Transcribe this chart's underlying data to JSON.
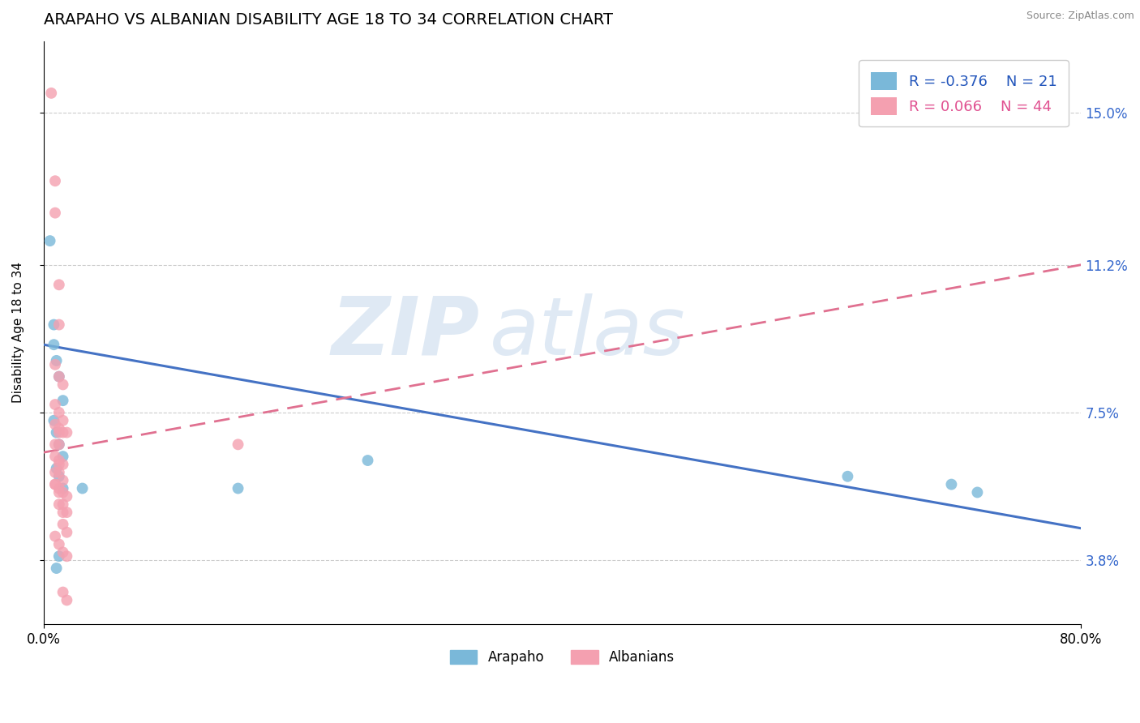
{
  "title": "ARAPAHO VS ALBANIAN DISABILITY AGE 18 TO 34 CORRELATION CHART",
  "source": "Source: ZipAtlas.com",
  "ylabel": "Disability Age 18 to 34",
  "xlim": [
    0.0,
    0.8
  ],
  "ylim": [
    0.022,
    0.168
  ],
  "xtick_values": [
    0.0,
    0.8
  ],
  "xtick_labels": [
    "0.0%",
    "80.0%"
  ],
  "ytick_values": [
    0.038,
    0.075,
    0.112,
    0.15
  ],
  "ytick_labels": [
    "3.8%",
    "7.5%",
    "11.2%",
    "15.0%"
  ],
  "arapaho_color": "#7ab8d9",
  "albanian_color": "#f4a0b0",
  "arapaho_line_color": "#4472C4",
  "albanian_line_color": "#e07090",
  "arapaho_R": -0.376,
  "arapaho_N": 21,
  "albanian_R": 0.066,
  "albanian_N": 44,
  "watermark_zip": "ZIP",
  "watermark_atlas": "atlas",
  "watermark_color": "#c8d8e8",
  "grid_color": "#cccccc",
  "title_fontsize": 14,
  "label_fontsize": 11,
  "tick_fontsize": 12,
  "ytick_color": "#3366cc",
  "legend_color_blue": "#2255bb",
  "legend_color_pink": "#e05090",
  "arapaho_line_y0": 0.092,
  "arapaho_line_y1": 0.046,
  "albanian_line_y0": 0.065,
  "albanian_line_y1": 0.112,
  "arapaho_x": [
    0.005,
    0.008,
    0.008,
    0.01,
    0.012,
    0.015,
    0.008,
    0.01,
    0.012,
    0.015,
    0.01,
    0.012,
    0.015,
    0.03,
    0.15,
    0.25,
    0.62,
    0.7,
    0.72,
    0.01,
    0.012
  ],
  "arapaho_y": [
    0.118,
    0.097,
    0.092,
    0.088,
    0.084,
    0.078,
    0.073,
    0.07,
    0.067,
    0.064,
    0.061,
    0.059,
    0.056,
    0.056,
    0.056,
    0.063,
    0.059,
    0.057,
    0.055,
    0.036,
    0.039
  ],
  "albanian_x": [
    0.006,
    0.009,
    0.009,
    0.012,
    0.012,
    0.009,
    0.012,
    0.015,
    0.009,
    0.012,
    0.015,
    0.012,
    0.015,
    0.018,
    0.009,
    0.012,
    0.009,
    0.012,
    0.015,
    0.009,
    0.012,
    0.015,
    0.009,
    0.012,
    0.015,
    0.018,
    0.012,
    0.015,
    0.15,
    0.015,
    0.018,
    0.009,
    0.012,
    0.015,
    0.018,
    0.009,
    0.012,
    0.015,
    0.018,
    0.009,
    0.012,
    0.015,
    0.018,
    0.012
  ],
  "albanian_y": [
    0.155,
    0.133,
    0.125,
    0.107,
    0.097,
    0.087,
    0.084,
    0.082,
    0.077,
    0.075,
    0.073,
    0.071,
    0.07,
    0.07,
    0.067,
    0.067,
    0.064,
    0.063,
    0.062,
    0.06,
    0.06,
    0.058,
    0.057,
    0.056,
    0.055,
    0.054,
    0.052,
    0.05,
    0.067,
    0.047,
    0.045,
    0.044,
    0.042,
    0.04,
    0.039,
    0.057,
    0.055,
    0.052,
    0.05,
    0.072,
    0.07,
    0.03,
    0.028,
    0.062
  ]
}
